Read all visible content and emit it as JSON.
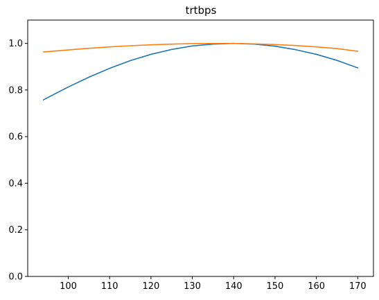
{
  "chart_data": {
    "type": "line",
    "title": "trtbps",
    "xlabel": "",
    "ylabel": "",
    "xlim": [
      90.2,
      173.8
    ],
    "ylim": [
      0.0,
      1.1
    ],
    "xticks": [
      100,
      110,
      120,
      130,
      140,
      150,
      160,
      170
    ],
    "yticks": [
      0.0,
      0.2,
      0.4,
      0.6,
      0.8,
      1.0
    ],
    "grid": false,
    "legend": false,
    "series": [
      {
        "color": "#1f77b4",
        "x": [
          94,
          100,
          105,
          110,
          115,
          120,
          125,
          130,
          135,
          140,
          145,
          150,
          155,
          160,
          165,
          170
        ],
        "y": [
          0.758,
          0.813,
          0.855,
          0.893,
          0.926,
          0.953,
          0.974,
          0.989,
          0.997,
          1.0,
          0.997,
          0.988,
          0.973,
          0.953,
          0.927,
          0.895
        ]
      },
      {
        "color": "#ff7f0e",
        "x": [
          94,
          100,
          105,
          110,
          115,
          120,
          125,
          130,
          135,
          140,
          145,
          150,
          155,
          160,
          165,
          170
        ],
        "y": [
          0.963,
          0.972,
          0.979,
          0.985,
          0.99,
          0.994,
          0.997,
          0.999,
          1.0,
          1.0,
          0.998,
          0.995,
          0.991,
          0.985,
          0.978,
          0.966
        ]
      }
    ]
  }
}
